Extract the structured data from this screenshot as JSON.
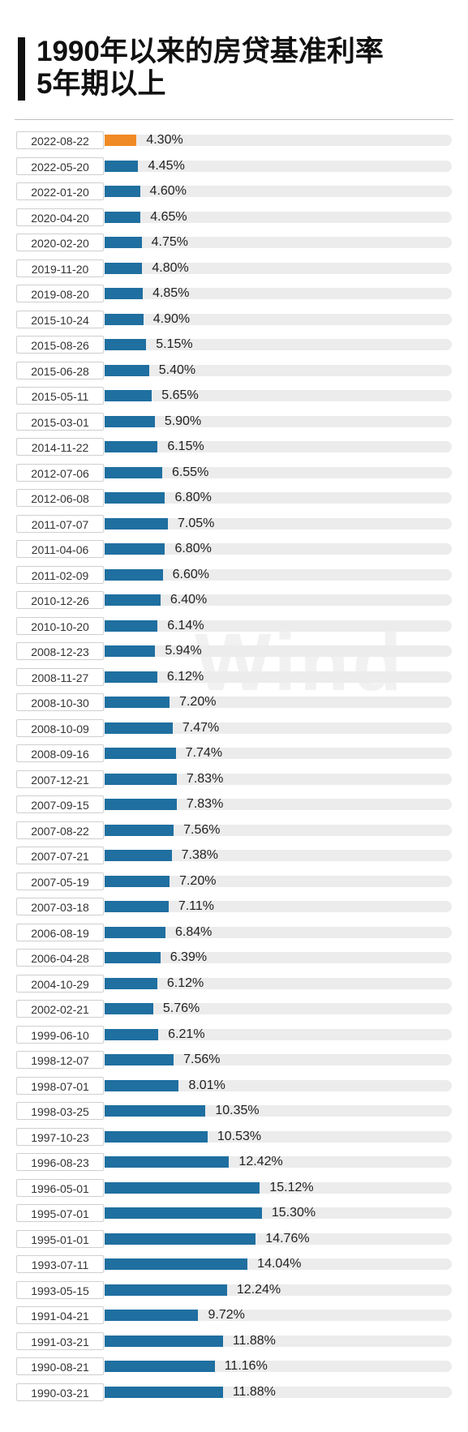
{
  "title": {
    "line1": "1990年以来的房贷基准利率",
    "line2": "5年期以上"
  },
  "watermark": "Wind",
  "colors": {
    "bar": "#1f6fa0",
    "highlight": "#f08a24",
    "track": "#ececec"
  },
  "chart_data": {
    "type": "bar",
    "orientation": "horizontal",
    "value_unit": "%",
    "highlight_index": 0,
    "categories": [
      "2022-08-22",
      "2022-05-20",
      "2022-01-20",
      "2020-04-20",
      "2020-02-20",
      "2019-11-20",
      "2019-08-20",
      "2015-10-24",
      "2015-08-26",
      "2015-06-28",
      "2015-05-11",
      "2015-03-01",
      "2014-11-22",
      "2012-07-06",
      "2012-06-08",
      "2011-07-07",
      "2011-04-06",
      "2011-02-09",
      "2010-12-26",
      "2010-10-20",
      "2008-12-23",
      "2008-11-27",
      "2008-10-30",
      "2008-10-09",
      "2008-09-16",
      "2007-12-21",
      "2007-09-15",
      "2007-08-22",
      "2007-07-21",
      "2007-05-19",
      "2007-03-18",
      "2006-08-19",
      "2006-04-28",
      "2004-10-29",
      "2002-02-21",
      "1999-06-10",
      "1998-12-07",
      "1998-07-01",
      "1998-03-25",
      "1997-10-23",
      "1996-08-23",
      "1996-05-01",
      "1995-07-01",
      "1995-01-01",
      "1993-07-11",
      "1993-05-15",
      "1991-04-21",
      "1991-03-21",
      "1990-08-21",
      "1990-03-21"
    ],
    "values": [
      4.3,
      4.45,
      4.6,
      4.65,
      4.75,
      4.8,
      4.85,
      4.9,
      5.15,
      5.4,
      5.65,
      5.9,
      6.15,
      6.55,
      6.8,
      7.05,
      6.8,
      6.6,
      6.4,
      6.14,
      5.94,
      6.12,
      7.2,
      7.47,
      7.74,
      7.83,
      7.83,
      7.56,
      7.38,
      7.2,
      7.11,
      6.84,
      6.39,
      6.12,
      5.76,
      6.21,
      7.56,
      8.01,
      10.35,
      10.53,
      12.42,
      15.12,
      15.3,
      14.76,
      14.04,
      12.24,
      9.72,
      11.88,
      11.16,
      11.88
    ],
    "labels": [
      "4.30%",
      "4.45%",
      "4.60%",
      "4.65%",
      "4.75%",
      "4.80%",
      "4.85%",
      "4.90%",
      "5.15%",
      "5.40%",
      "5.65%",
      "5.90%",
      "6.15%",
      "6.55%",
      "6.80%",
      "7.05%",
      "6.80%",
      "6.60%",
      "6.40%",
      "6.14%",
      "5.94%",
      "6.12%",
      "7.20%",
      "7.47%",
      "7.74%",
      "7.83%",
      "7.83%",
      "7.56%",
      "7.38%",
      "7.20%",
      "7.11%",
      "6.84%",
      "6.39%",
      "6.12%",
      "5.76%",
      "6.21%",
      "7.56%",
      "8.01%",
      "10.35%",
      "10.53%",
      "12.42%",
      "15.12%",
      "15.30%",
      "14.76%",
      "14.04%",
      "12.24%",
      "9.72%",
      "11.88%",
      "11.16%",
      "11.88%"
    ]
  }
}
